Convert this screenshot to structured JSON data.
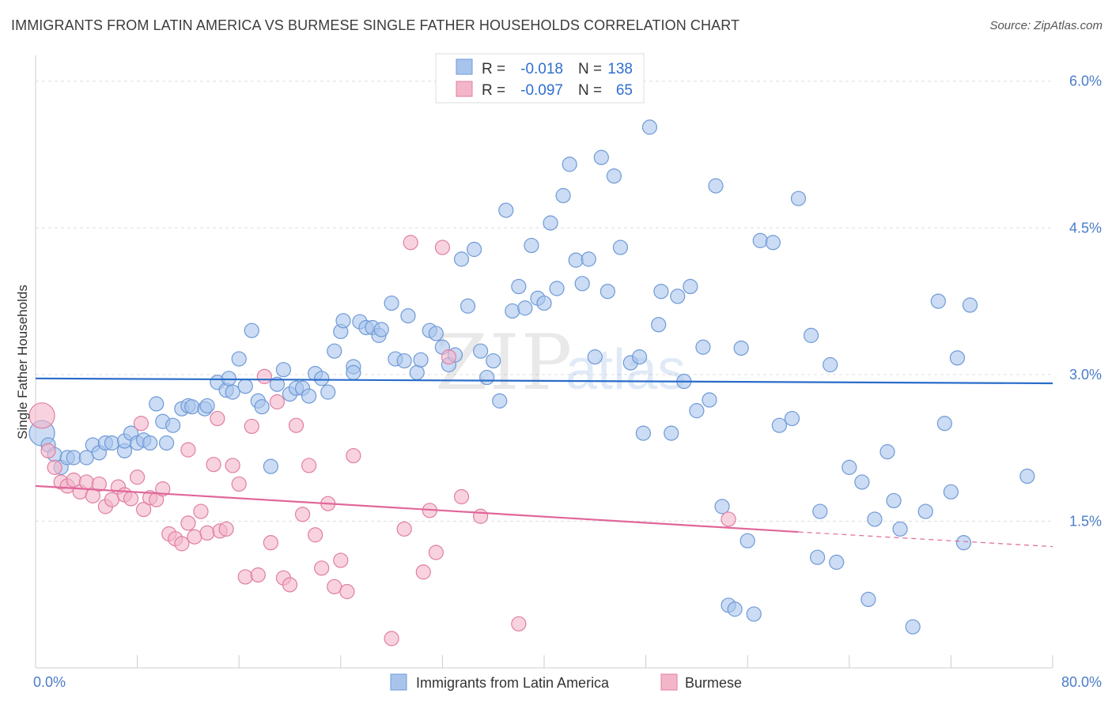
{
  "title": "IMMIGRANTS FROM LATIN AMERICA VS BURMESE SINGLE FATHER HOUSEHOLDS CORRELATION CHART",
  "source": "Source: ZipAtlas.com",
  "watermark": {
    "zip": "ZIP",
    "atlas": "atlas"
  },
  "colors": {
    "blue": "#a9c4ec",
    "blue_line": "#2a6cc9",
    "pink": "#f3b6c9",
    "pink_line": "#e0679a"
  },
  "legend": {
    "r_label": "R =",
    "n_label": "N =",
    "rows": [
      {
        "r": "-0.018",
        "n": "138"
      },
      {
        "r": "-0.097",
        "n": "65"
      }
    ]
  },
  "chart_data": {
    "type": "scatter",
    "xlabel": "",
    "ylabel": "Single Father Households",
    "xlim": [
      0,
      80
    ],
    "ylim": [
      0,
      6.2
    ],
    "x_tick_labels": [
      "0.0%",
      "80.0%"
    ],
    "y_ticks": [
      1.5,
      3.0,
      4.5,
      6.0
    ],
    "y_tick_labels": [
      "1.5%",
      "3.0%",
      "4.5%",
      "6.0%"
    ],
    "grid": true,
    "legend_position": "bottom-center",
    "series": [
      {
        "name": "Immigrants from Latin America",
        "trend": {
          "x": [
            0,
            80
          ],
          "y": [
            2.96,
            2.91
          ]
        },
        "points": [
          [
            0.5,
            2.4
          ],
          [
            1,
            2.28
          ],
          [
            1.5,
            2.18
          ],
          [
            2,
            2.05
          ],
          [
            2.5,
            2.15
          ],
          [
            3,
            2.15
          ],
          [
            4,
            2.15
          ],
          [
            4.5,
            2.28
          ],
          [
            5,
            2.2
          ],
          [
            5.5,
            2.3
          ],
          [
            6,
            2.3
          ],
          [
            7,
            2.22
          ],
          [
            7,
            2.32
          ],
          [
            7.5,
            2.4
          ],
          [
            8,
            2.3
          ],
          [
            8.5,
            2.33
          ],
          [
            9,
            2.3
          ],
          [
            9.5,
            2.7
          ],
          [
            10,
            2.52
          ],
          [
            10.3,
            2.3
          ],
          [
            10.8,
            2.48
          ],
          [
            11.5,
            2.65
          ],
          [
            12,
            2.68
          ],
          [
            12.3,
            2.67
          ],
          [
            13.3,
            2.65
          ],
          [
            13.5,
            2.68
          ],
          [
            14.3,
            2.92
          ],
          [
            15,
            2.84
          ],
          [
            15.2,
            2.96
          ],
          [
            15.5,
            2.82
          ],
          [
            16,
            3.16
          ],
          [
            16.5,
            2.88
          ],
          [
            17,
            3.45
          ],
          [
            17.5,
            2.73
          ],
          [
            17.8,
            2.67
          ],
          [
            18.5,
            2.06
          ],
          [
            19,
            2.9
          ],
          [
            19.5,
            3.05
          ],
          [
            20,
            2.8
          ],
          [
            20.5,
            2.86
          ],
          [
            21,
            2.86
          ],
          [
            21.5,
            2.78
          ],
          [
            22,
            3.01
          ],
          [
            22.5,
            2.96
          ],
          [
            23,
            2.82
          ],
          [
            23.5,
            3.24
          ],
          [
            24,
            3.44
          ],
          [
            24.2,
            3.55
          ],
          [
            25,
            3.08
          ],
          [
            25,
            3.02
          ],
          [
            25.5,
            3.54
          ],
          [
            26,
            3.48
          ],
          [
            26.5,
            3.48
          ],
          [
            27,
            3.4
          ],
          [
            27.2,
            3.46
          ],
          [
            28,
            3.73
          ],
          [
            28.3,
            3.16
          ],
          [
            29,
            3.14
          ],
          [
            29.3,
            3.6
          ],
          [
            30,
            3.02
          ],
          [
            30.3,
            3.15
          ],
          [
            31,
            3.45
          ],
          [
            31.5,
            3.42
          ],
          [
            32,
            3.28
          ],
          [
            32.5,
            3.1
          ],
          [
            33,
            3.2
          ],
          [
            33.5,
            4.18
          ],
          [
            34,
            3.7
          ],
          [
            34.5,
            4.28
          ],
          [
            35,
            3.24
          ],
          [
            35.5,
            2.97
          ],
          [
            36,
            3.14
          ],
          [
            36.5,
            2.73
          ],
          [
            37,
            4.68
          ],
          [
            37.5,
            3.65
          ],
          [
            38,
            3.9
          ],
          [
            38.5,
            3.68
          ],
          [
            39,
            4.32
          ],
          [
            39.5,
            3.78
          ],
          [
            40,
            3.73
          ],
          [
            40.5,
            4.55
          ],
          [
            41,
            3.88
          ],
          [
            41.5,
            4.83
          ],
          [
            42,
            5.15
          ],
          [
            42.5,
            4.17
          ],
          [
            43,
            3.93
          ],
          [
            43.5,
            4.18
          ],
          [
            44,
            3.18
          ],
          [
            44.5,
            5.22
          ],
          [
            45,
            3.85
          ],
          [
            45.5,
            5.03
          ],
          [
            46,
            4.3
          ],
          [
            46.8,
            3.12
          ],
          [
            47.5,
            3.18
          ],
          [
            47.8,
            2.4
          ],
          [
            48.3,
            5.53
          ],
          [
            49,
            3.51
          ],
          [
            49.2,
            3.85
          ],
          [
            50,
            2.4
          ],
          [
            50.5,
            3.8
          ],
          [
            51,
            2.93
          ],
          [
            51.5,
            3.9
          ],
          [
            52,
            2.63
          ],
          [
            52.5,
            3.28
          ],
          [
            53,
            2.74
          ],
          [
            53.5,
            4.93
          ],
          [
            54,
            1.65
          ],
          [
            54.5,
            0.64
          ],
          [
            55,
            0.6
          ],
          [
            55.5,
            3.27
          ],
          [
            56,
            1.3
          ],
          [
            56.5,
            0.55
          ],
          [
            57,
            4.37
          ],
          [
            58,
            4.35
          ],
          [
            58.5,
            2.48
          ],
          [
            59.5,
            2.55
          ],
          [
            60,
            4.8
          ],
          [
            61,
            3.4
          ],
          [
            61.5,
            1.13
          ],
          [
            61.7,
            1.6
          ],
          [
            62.5,
            3.1
          ],
          [
            63,
            1.08
          ],
          [
            64,
            2.05
          ],
          [
            65,
            1.9
          ],
          [
            65.5,
            0.7
          ],
          [
            66,
            1.52
          ],
          [
            67,
            2.21
          ],
          [
            67.5,
            1.71
          ],
          [
            68,
            1.42
          ],
          [
            69,
            0.42
          ],
          [
            70,
            1.6
          ],
          [
            71,
            3.75
          ],
          [
            71.5,
            2.5
          ],
          [
            72,
            1.8
          ],
          [
            72.5,
            3.17
          ],
          [
            73,
            1.28
          ],
          [
            73.5,
            3.71
          ],
          [
            78,
            1.96
          ]
        ]
      },
      {
        "name": "Burmese",
        "trend": {
          "x": [
            0,
            60
          ],
          "y": [
            1.86,
            1.39
          ]
        },
        "trend_dashed": {
          "x": [
            60,
            80
          ],
          "y": [
            1.39,
            1.24
          ]
        },
        "points": [
          [
            0.5,
            2.58
          ],
          [
            1,
            2.22
          ],
          [
            1.5,
            2.05
          ],
          [
            2,
            1.9
          ],
          [
            2.5,
            1.86
          ],
          [
            3,
            1.92
          ],
          [
            3.5,
            1.8
          ],
          [
            4,
            1.9
          ],
          [
            4.5,
            1.76
          ],
          [
            5,
            1.88
          ],
          [
            5.5,
            1.65
          ],
          [
            6,
            1.72
          ],
          [
            6.5,
            1.85
          ],
          [
            7,
            1.77
          ],
          [
            7.5,
            1.73
          ],
          [
            8,
            1.95
          ],
          [
            8.5,
            1.62
          ],
          [
            9,
            1.74
          ],
          [
            9.5,
            1.72
          ],
          [
            10,
            1.83
          ],
          [
            10.5,
            1.37
          ],
          [
            11,
            1.32
          ],
          [
            11.5,
            1.27
          ],
          [
            12,
            1.48
          ],
          [
            12.5,
            1.34
          ],
          [
            13,
            1.6
          ],
          [
            13.5,
            1.38
          ],
          [
            14,
            2.08
          ],
          [
            14.5,
            1.4
          ],
          [
            15,
            1.42
          ],
          [
            15.5,
            2.07
          ],
          [
            16,
            1.88
          ],
          [
            16.5,
            0.93
          ],
          [
            17,
            2.47
          ],
          [
            17.5,
            0.95
          ],
          [
            18,
            2.98
          ],
          [
            18.5,
            1.28
          ],
          [
            19,
            2.72
          ],
          [
            19.5,
            0.92
          ],
          [
            20,
            0.85
          ],
          [
            20.5,
            2.48
          ],
          [
            21,
            1.57
          ],
          [
            21.5,
            2.07
          ],
          [
            22,
            1.36
          ],
          [
            22.5,
            1.02
          ],
          [
            23,
            1.68
          ],
          [
            23.5,
            0.83
          ],
          [
            24,
            1.1
          ],
          [
            24.5,
            0.78
          ],
          [
            25,
            2.17
          ],
          [
            28,
            0.3
          ],
          [
            29,
            1.42
          ],
          [
            29.5,
            4.35
          ],
          [
            30.5,
            0.98
          ],
          [
            31,
            1.61
          ],
          [
            31.5,
            1.18
          ],
          [
            32,
            4.3
          ],
          [
            32.5,
            3.18
          ],
          [
            33.5,
            1.75
          ],
          [
            35,
            1.55
          ],
          [
            38,
            0.45
          ],
          [
            54.5,
            1.52
          ],
          [
            8.3,
            2.5
          ],
          [
            12,
            2.23
          ],
          [
            14.3,
            2.55
          ]
        ]
      }
    ]
  },
  "bottom_legend": [
    "Immigrants from Latin America",
    "Burmese"
  ]
}
